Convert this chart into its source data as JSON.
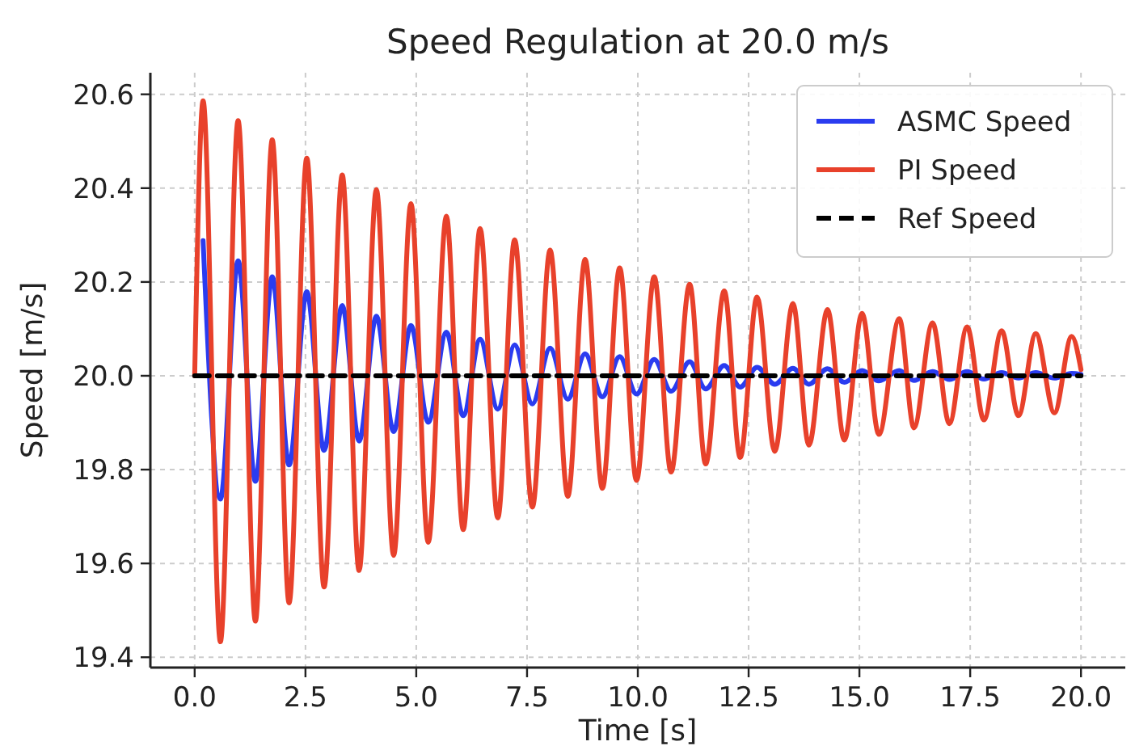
{
  "chart_data": {
    "type": "line",
    "title": "Speed Regulation at 20.0 m/s",
    "xlabel": "Time [s]",
    "ylabel": "Speed [m/s]",
    "x": [
      0,
      0.19,
      0.58,
      0.98,
      1.37,
      1.75,
      2.13,
      2.53,
      2.92,
      3.33,
      3.71,
      4.1,
      4.49,
      4.88,
      5.27,
      5.68,
      6.06,
      6.44,
      6.84,
      7.22,
      7.62,
      8.02,
      8.42,
      8.81,
      9.2,
      9.59,
      9.97,
      10.37,
      10.75,
      11.17,
      11.53,
      11.95,
      12.31,
      12.69,
      13.09,
      13.5,
      13.86,
      14.28,
      14.66,
      15.06,
      15.44,
      15.9,
      16.23,
      16.65,
      17.03,
      17.43,
      17.81,
      18.21,
      18.59,
      18.98,
      19.4,
      19.79,
      20.0
    ],
    "series": [
      {
        "name": "ASMC Speed",
        "color": "#2a3cf0",
        "values": [
          null,
          20.288,
          19.737,
          20.245,
          19.775,
          20.211,
          19.81,
          20.179,
          19.841,
          20.15,
          19.861,
          20.127,
          19.881,
          20.107,
          19.901,
          20.093,
          19.915,
          20.078,
          19.929,
          20.066,
          19.94,
          20.059,
          19.95,
          20.047,
          19.955,
          20.041,
          19.961,
          20.035,
          19.967,
          20.03,
          19.972,
          20.022,
          19.976,
          20.018,
          19.982,
          20.016,
          19.982,
          20.015,
          19.986,
          20.011,
          19.989,
          20.011,
          19.99,
          20.009,
          19.992,
          20.009,
          19.993,
          20.007,
          19.995,
          20.007,
          19.995,
          20.005,
          20.003
        ]
      },
      {
        "name": "PI Speed",
        "color": "#e8412b",
        "values": [
          20.0,
          20.586,
          19.433,
          20.544,
          19.477,
          20.503,
          19.516,
          20.464,
          19.55,
          20.428,
          19.585,
          20.397,
          19.617,
          20.367,
          19.645,
          20.34,
          19.672,
          20.314,
          19.697,
          20.29,
          19.72,
          20.268,
          19.743,
          20.248,
          19.76,
          20.23,
          19.777,
          20.211,
          19.795,
          20.195,
          19.812,
          20.181,
          19.826,
          20.168,
          19.839,
          20.154,
          19.852,
          20.141,
          19.863,
          20.133,
          19.875,
          20.122,
          19.889,
          20.113,
          19.898,
          20.104,
          19.906,
          20.096,
          19.915,
          20.09,
          19.921,
          20.084,
          20.013
        ]
      },
      {
        "name": "Ref Speed",
        "color": "#000000",
        "line_style": "dashed",
        "x": [
          0,
          20
        ],
        "values": [
          20.0,
          20.0
        ]
      }
    ],
    "xlim": [
      -1,
      21
    ],
    "xticks": [
      {
        "value": 0,
        "label": "0.0"
      },
      2.5,
      {
        "value": 5,
        "label": "5.0"
      },
      7.5,
      {
        "value": 10,
        "label": "10.0"
      },
      12.5,
      {
        "value": 15,
        "label": "15.0"
      },
      17.5,
      {
        "value": 20,
        "label": "20.0"
      }
    ],
    "ylim": [
      19.378,
      20.646
    ],
    "yticks": [
      19.4,
      19.6,
      19.8,
      {
        "value": 20,
        "label": "20.0"
      },
      20.2,
      20.4,
      20.6
    ],
    "grid": true,
    "legend": "top right",
    "line_style": "solid"
  }
}
